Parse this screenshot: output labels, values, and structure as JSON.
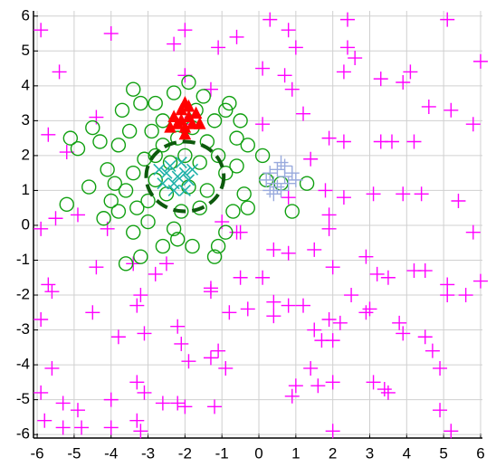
{
  "chart_data": {
    "type": "scatter",
    "xlim": [
      -6.1,
      6.05
    ],
    "ylim": [
      -6.1,
      6.15
    ],
    "xticks": [
      -6,
      -5,
      -4,
      -3,
      -2,
      -1,
      0,
      1,
      2,
      3,
      4,
      5,
      6
    ],
    "yticks": [
      -6,
      -5,
      -4,
      -3,
      -2,
      -1,
      0,
      1,
      2,
      3,
      4,
      5,
      6
    ],
    "grid": true,
    "series": [
      {
        "marker": "plus",
        "color": "#ff00ff",
        "x": [
          -5.9,
          -5.4,
          -4,
          -2.3,
          -2,
          -1.1,
          -0.6,
          0.3,
          0.8,
          1,
          2.4,
          2.4,
          5.1,
          6,
          2.3,
          2.6,
          3.3,
          3.9,
          4.1,
          4.6,
          5.2,
          0.1,
          0.7,
          0.9,
          -1.3,
          -2,
          -5.7,
          -4.4,
          -5.2,
          -2,
          0.1,
          1.2,
          1.9,
          2.3,
          3.3,
          3.6,
          4.2,
          5.8,
          1.4,
          1.8,
          1.9,
          2.3,
          3.1,
          3.9,
          4.4,
          5.4,
          5.8,
          0.8,
          -4.1,
          -5.9,
          -5.5,
          -4.9,
          -1.0,
          -0.5,
          0.4,
          0.8,
          1.5,
          1.9,
          2,
          2.9,
          3.2,
          3.5,
          4.2,
          4.5,
          5.1,
          6,
          -5.7,
          -5.6,
          -4.4,
          -3.4,
          -2.8,
          -2.5,
          -1.3,
          -1.3,
          -0.5,
          0.1,
          0.4,
          0.8,
          1.2,
          1.9,
          2.2,
          2.5,
          2.9,
          3.0,
          3.8,
          3.9,
          4.5,
          4.7,
          5.6,
          5.1,
          -4.5,
          -3.8,
          -3.2,
          -3.3,
          -2.2,
          -2.1,
          -1.3,
          -1.1,
          -0.8,
          -0.3,
          0.4,
          1.5,
          1.7,
          2.0,
          2.0,
          1.4,
          1.6,
          1.0,
          0.9,
          -0.9,
          -1.2,
          -1.9,
          -2.0,
          -2.2,
          -2.6,
          -3.3,
          -3.1,
          -3.3,
          -4.0,
          -4.9,
          -5.3,
          -5.6,
          -5.9,
          -5.3,
          -4.0,
          -3.2,
          3.1,
          3.4,
          3.5,
          4.9,
          4.9,
          5.2,
          -5.8,
          2,
          -5.9,
          -4.8,
          -0.6,
          -3.1
        ],
        "y": [
          5.6,
          4.4,
          5.5,
          5.2,
          5.6,
          5.1,
          5.4,
          5.9,
          5.6,
          5.1,
          5.9,
          5.1,
          5.9,
          4.7,
          4.4,
          4.8,
          4.2,
          4.1,
          4.4,
          3.4,
          3.3,
          4.5,
          4.3,
          3.9,
          3.9,
          4.3,
          2.6,
          3.1,
          2.1,
          2.9,
          2.9,
          3.2,
          2.5,
          2.4,
          2.4,
          2.4,
          2.4,
          2.9,
          1.9,
          1.0,
          0.3,
          0.8,
          0.9,
          0.9,
          0.9,
          0.7,
          -0.2,
          0.8,
          -0.1,
          -0.1,
          0.2,
          0.3,
          0.1,
          -0.2,
          -0.7,
          -0.8,
          -0.7,
          -0.1,
          -1.2,
          -0.9,
          -1.4,
          -1.5,
          -1.3,
          -1.3,
          -1.7,
          -1.6,
          -1.7,
          -1.9,
          -1.2,
          -1.1,
          -1.4,
          -1.1,
          -1.8,
          -1.9,
          -1.5,
          -1.5,
          -2.2,
          -2.3,
          -2.3,
          -2.7,
          -2.8,
          -2.0,
          -2.5,
          -2.4,
          -2.8,
          -3.1,
          -3.2,
          -3.6,
          -2,
          -2,
          -2.5,
          -3.2,
          -2.0,
          -2.3,
          -2.9,
          -3.4,
          -3.8,
          -3.6,
          -2.5,
          -2.4,
          -2.6,
          -3.0,
          -3.3,
          -3.3,
          -4.5,
          -4.1,
          -4.6,
          -4.6,
          -4.9,
          -4.1,
          -5.2,
          -3.9,
          -5.2,
          -5.1,
          -5.1,
          -4.5,
          -4.8,
          -5.6,
          -5.0,
          -5.3,
          -5.1,
          -4.1,
          -4.8,
          -5.8,
          -5.8,
          -5.9,
          -4.5,
          -4.7,
          -4.8,
          -5.3,
          -4.1,
          -5.9,
          -5.6,
          -5.9,
          -2.7,
          -5.8,
          -0.2,
          -3.1
        ]
      },
      {
        "marker": "circle",
        "color": "#11a011",
        "x": [
          -5.1,
          -5.2,
          -4.9,
          -4.5,
          -4.3,
          -4.1,
          -4.6,
          -4.0,
          -3.8,
          -3.6,
          -3.4,
          -3.6,
          -3.2,
          -3.4,
          -3.2,
          -2.8,
          -2.6,
          -2.3,
          -1.9,
          -1.5,
          -0.9,
          -0.8,
          -0.5,
          -0.3,
          0.1,
          0.2,
          0.6,
          1.3,
          0.9,
          -0.3,
          -0.7,
          -0.9,
          -1.1,
          -1.2,
          -1.8,
          -2.2,
          -2.6,
          -3.0,
          -3.0,
          -2.8,
          -3.1,
          -2.6,
          -2.2,
          -1.8,
          -1.4,
          -1.1,
          -0.9,
          -1.4,
          -1.6,
          -2.1,
          -2.5,
          -2.8,
          -3.4,
          -3.8,
          -3.5,
          -1.2,
          -0.6,
          -0.4,
          -4.2,
          -1.7,
          -3.9,
          -2.4,
          -1.9,
          -2.0,
          -1.6,
          -2.9,
          -3.3,
          -2.3,
          -0.6,
          -3.7
        ],
        "y": [
          2.5,
          0.6,
          2.2,
          2.8,
          2.4,
          1.6,
          1.1,
          0.7,
          0.4,
          1.0,
          -0.2,
          -1.1,
          -0.9,
          3.9,
          3.5,
          3.5,
          3.0,
          3.8,
          4.1,
          3.7,
          3.3,
          3.5,
          3.0,
          2.3,
          2.0,
          1.3,
          1.2,
          1.2,
          0.4,
          0.5,
          0.4,
          -0.2,
          -0.6,
          -0.9,
          -0.6,
          -0.4,
          -0.6,
          0.1,
          0.7,
          1.3,
          1.9,
          2.3,
          2.5,
          2.8,
          2.4,
          2.0,
          1.5,
          1.0,
          0.5,
          0.4,
          0.9,
          2.0,
          1.5,
          2.3,
          2.7,
          3.0,
          1.7,
          0.9,
          0.2,
          3.3,
          1.2,
          1.8,
          1.1,
          2.0,
          1.8,
          2.7,
          0.5,
          -0.1,
          2.5,
          3.3
        ]
      },
      {
        "marker": "triangle",
        "color": "#ff0000",
        "x": [
          -2.1,
          -2.0,
          -1.9,
          -2.2,
          -1.8,
          -2.0,
          -2.3,
          -1.7,
          -2.1,
          -1.9,
          -2.0,
          -2.4,
          -1.6
        ],
        "y": [
          3.3,
          3.5,
          3.1,
          2.9,
          2.9,
          2.8,
          3.1,
          3.2,
          3.0,
          3.4,
          2.6,
          2.8,
          2.9
        ]
      },
      {
        "marker": "plus",
        "color": "#99aadd",
        "x": [
          0.2,
          0.3,
          0.4,
          0.5,
          0.6,
          0.7,
          0.8,
          0.5,
          0.9,
          0.3,
          0.6,
          0.4,
          1.0,
          0.7
        ],
        "y": [
          1.3,
          1.5,
          1.2,
          1.6,
          1.0,
          1.4,
          1.2,
          1.1,
          1.5,
          1.0,
          1.8,
          0.9,
          1.3,
          1.7
        ]
      },
      {
        "marker": "x",
        "color": "#20b2aa",
        "x": [
          -2.5,
          -2.3,
          -2.1,
          -1.9,
          -2.6,
          -2.0,
          -2.4,
          -1.8,
          -2.2,
          -2.7,
          -2.0,
          -2.3
        ],
        "y": [
          1.5,
          1.0,
          1.8,
          1.3,
          1.2,
          1.0,
          1.7,
          1.6,
          1.4,
          1.6,
          1.5,
          1.2
        ]
      }
    ],
    "ellipse": {
      "cx": -2.0,
      "cy": 1.4,
      "rx": 1.05,
      "ry": 1.0,
      "color": "#0d5a0d"
    }
  }
}
